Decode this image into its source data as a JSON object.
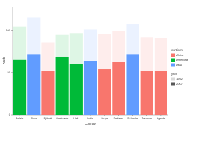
{
  "chart_data": {
    "type": "bar",
    "x_label": "Country",
    "y_label": "Rank",
    "categories": [
      "Bolivia",
      "China",
      "Djibouti",
      "Guatemala",
      "Haiti",
      "India",
      "Kenya",
      "Pakistan",
      "Sri Lanka",
      "Tanzania",
      "Uganda"
    ],
    "continent": [
      "Americas",
      "Asia",
      "Africa",
      "Americas",
      "Americas",
      "Asia",
      "Africa",
      "Africa",
      "Asia",
      "Africa",
      "Africa"
    ],
    "continent_legend": {
      "title": "continent",
      "items": [
        {
          "name": "Africa",
          "color": "#f8766d"
        },
        {
          "name": "Americas",
          "color": "#00ba38"
        },
        {
          "name": "Asia",
          "color": "#619cff"
        }
      ]
    },
    "year_legend_title": "year",
    "series": [
      {
        "name": "1952",
        "color": "#d9d9d9",
        "opacity": 0.13,
        "values": [
          105,
          116,
          86,
          95,
          97,
          101,
          96,
          99,
          108,
          92,
          91
        ]
      },
      {
        "name": "2007",
        "color": "#595959",
        "opacity": 1,
        "values": [
          65,
          72,
          52,
          69,
          60,
          64,
          54,
          63,
          72,
          52,
          52
        ]
      }
    ],
    "ylim": [
      0,
      128
    ],
    "yticks": [
      0,
      50,
      100
    ],
    "grid": false
  }
}
